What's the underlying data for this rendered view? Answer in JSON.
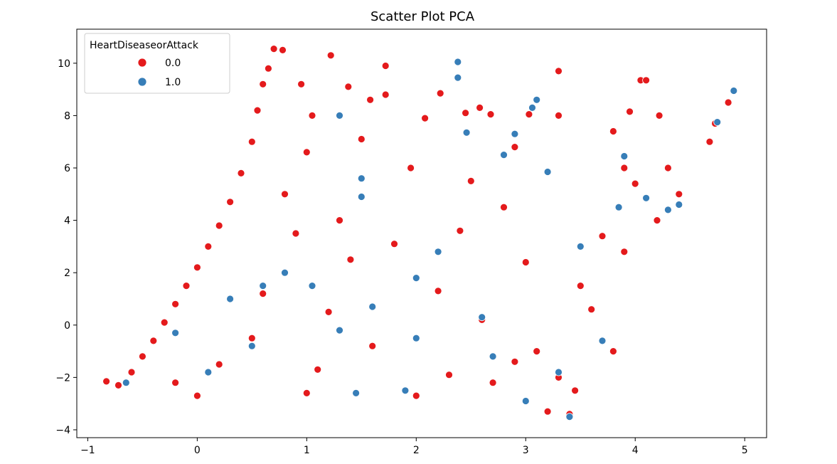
{
  "chart_data": {
    "type": "scatter",
    "title": "Scatter Plot PCA",
    "xlabel": "",
    "ylabel": "",
    "xlim": [
      -1.1,
      5.2
    ],
    "ylim": [
      -4.3,
      11.3
    ],
    "xticks": [
      -1,
      0,
      1,
      2,
      3,
      4,
      5
    ],
    "yticks": [
      -4,
      -2,
      0,
      2,
      4,
      6,
      8,
      10
    ],
    "xtick_labels": [
      "−1",
      "0",
      "1",
      "2",
      "3",
      "4",
      "5"
    ],
    "ytick_labels": [
      "−4",
      "−2",
      "0",
      "2",
      "4",
      "6",
      "8",
      "10"
    ],
    "grid": false,
    "legend": {
      "title": "HeartDiseaseorAttack",
      "placement": "top-left"
    },
    "series": [
      {
        "name": "0.0",
        "color": "#e41a1c",
        "points": [
          [
            -0.83,
            -2.15
          ],
          [
            -0.72,
            -2.3
          ],
          [
            -0.6,
            -1.8
          ],
          [
            -0.5,
            -1.2
          ],
          [
            -0.4,
            -0.6
          ],
          [
            -0.3,
            0.1
          ],
          [
            -0.2,
            0.8
          ],
          [
            -0.1,
            1.5
          ],
          [
            0.0,
            2.2
          ],
          [
            0.1,
            3.0
          ],
          [
            0.2,
            3.8
          ],
          [
            0.3,
            4.7
          ],
          [
            0.4,
            5.8
          ],
          [
            0.5,
            7.0
          ],
          [
            0.55,
            8.2
          ],
          [
            0.6,
            9.2
          ],
          [
            0.65,
            9.8
          ],
          [
            0.7,
            10.55
          ],
          [
            0.78,
            10.5
          ],
          [
            0.95,
            9.2
          ],
          [
            1.05,
            8.0
          ],
          [
            1.22,
            10.3
          ],
          [
            1.38,
            9.1
          ],
          [
            1.58,
            8.6
          ],
          [
            1.72,
            9.9
          ],
          [
            1.72,
            8.8
          ],
          [
            2.08,
            7.9
          ],
          [
            2.22,
            8.85
          ],
          [
            2.45,
            8.1
          ],
          [
            2.58,
            8.3
          ],
          [
            2.68,
            8.05
          ],
          [
            3.03,
            8.05
          ],
          [
            3.3,
            9.7
          ],
          [
            3.3,
            8.0
          ],
          [
            3.8,
            7.4
          ],
          [
            3.95,
            8.15
          ],
          [
            4.05,
            9.35
          ],
          [
            4.1,
            9.35
          ],
          [
            4.22,
            8.0
          ],
          [
            4.68,
            7.0
          ],
          [
            4.73,
            7.7
          ],
          [
            4.85,
            8.5
          ],
          [
            4.3,
            6.0
          ],
          [
            4.4,
            5.0
          ],
          [
            4.2,
            4.0
          ],
          [
            3.9,
            2.8
          ],
          [
            3.5,
            1.5
          ],
          [
            3.1,
            -1.0
          ],
          [
            3.2,
            -3.3
          ],
          [
            3.4,
            -3.4
          ],
          [
            3.45,
            -2.5
          ],
          [
            2.0,
            -2.7
          ],
          [
            1.0,
            -2.6
          ],
          [
            0.0,
            -2.7
          ],
          [
            -0.2,
            -2.2
          ],
          [
            0.6,
            1.2
          ],
          [
            1.2,
            0.5
          ],
          [
            1.6,
            -0.8
          ],
          [
            2.2,
            1.3
          ],
          [
            2.6,
            0.2
          ],
          [
            2.9,
            -1.4
          ],
          [
            3.6,
            0.6
          ],
          [
            1.4,
            2.5
          ],
          [
            0.9,
            3.5
          ],
          [
            1.8,
            3.1
          ],
          [
            2.4,
            3.6
          ],
          [
            3.0,
            2.4
          ],
          [
            3.7,
            3.4
          ],
          [
            1.95,
            6.0
          ],
          [
            2.5,
            5.5
          ],
          [
            2.8,
            4.5
          ],
          [
            1.3,
            4.0
          ],
          [
            0.8,
            5.0
          ],
          [
            1.0,
            6.6
          ],
          [
            1.5,
            7.1
          ],
          [
            2.9,
            6.8
          ],
          [
            3.9,
            6.0
          ],
          [
            4.0,
            5.4
          ],
          [
            0.2,
            -1.5
          ],
          [
            0.5,
            -0.5
          ],
          [
            1.1,
            -1.7
          ],
          [
            2.3,
            -1.9
          ],
          [
            2.7,
            -2.2
          ],
          [
            3.3,
            -2.0
          ],
          [
            3.8,
            -1.0
          ]
        ]
      },
      {
        "name": "1.0",
        "color": "#377eb8",
        "points": [
          [
            -0.65,
            -2.2
          ],
          [
            -0.2,
            -0.3
          ],
          [
            0.1,
            -1.8
          ],
          [
            0.3,
            1.0
          ],
          [
            0.5,
            -0.8
          ],
          [
            0.8,
            2.0
          ],
          [
            1.05,
            1.5
          ],
          [
            1.3,
            -0.2
          ],
          [
            1.45,
            -2.6
          ],
          [
            1.5,
            5.6
          ],
          [
            1.5,
            4.9
          ],
          [
            1.6,
            0.7
          ],
          [
            1.9,
            -2.5
          ],
          [
            2.0,
            1.8
          ],
          [
            2.2,
            2.8
          ],
          [
            2.38,
            10.05
          ],
          [
            2.38,
            9.45
          ],
          [
            2.46,
            7.35
          ],
          [
            2.6,
            0.3
          ],
          [
            2.8,
            6.5
          ],
          [
            2.9,
            7.3
          ],
          [
            3.06,
            8.3
          ],
          [
            3.1,
            8.6
          ],
          [
            3.2,
            5.85
          ],
          [
            3.3,
            -1.8
          ],
          [
            3.5,
            3.0
          ],
          [
            3.7,
            -0.6
          ],
          [
            3.85,
            4.5
          ],
          [
            3.9,
            6.45
          ],
          [
            4.1,
            4.85
          ],
          [
            4.3,
            4.4
          ],
          [
            4.4,
            4.6
          ],
          [
            4.75,
            7.75
          ],
          [
            4.9,
            8.95
          ],
          [
            3.4,
            -3.5
          ],
          [
            1.3,
            8.0
          ],
          [
            2.0,
            -0.5
          ],
          [
            2.7,
            -1.2
          ],
          [
            3.0,
            -2.9
          ],
          [
            0.6,
            1.5
          ]
        ]
      }
    ]
  }
}
